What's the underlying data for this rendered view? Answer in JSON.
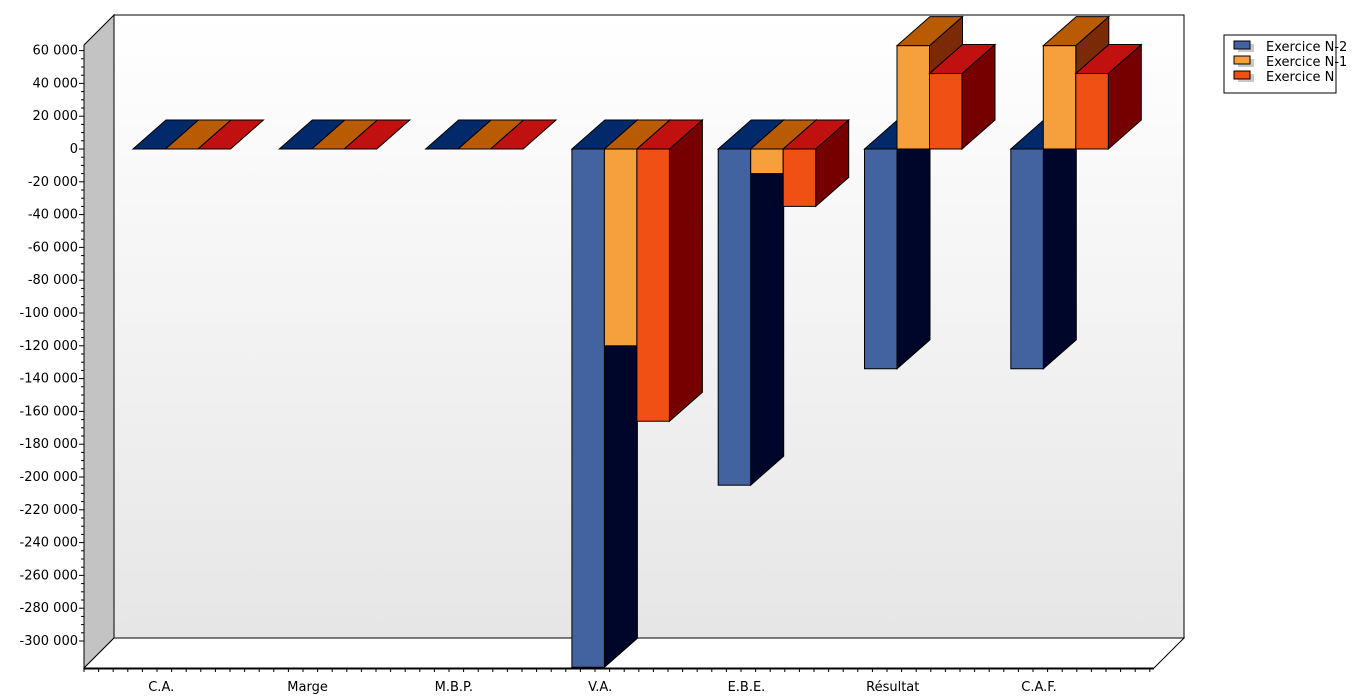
{
  "chart_data": {
    "type": "bar",
    "style": "3d-clustered",
    "categories": [
      "C.A.",
      "Marge",
      "M.B.P.",
      "V.A.",
      "E.B.E.",
      "Résultat",
      "C.A.F."
    ],
    "series": [
      {
        "name": "Exercice N-2",
        "values": [
          0,
          0,
          0,
          -316000,
          -205000,
          -134000,
          -134000
        ],
        "front": "#4263a0",
        "top": "#022a6a",
        "side": "#00052a"
      },
      {
        "name": "Exercice N-1",
        "values": [
          0,
          0,
          0,
          -120000,
          -15000,
          63000,
          63000
        ],
        "front": "#f6a03d",
        "top": "#b85b03",
        "side": "#7a2a06"
      },
      {
        "name": "Exercice N",
        "values": [
          0,
          0,
          0,
          -166000,
          -35000,
          46000,
          46000
        ],
        "front": "#f15014",
        "top": "#c01010",
        "side": "#760000"
      }
    ],
    "yticks": [
      "60 000",
      "40 000",
      "20 000",
      "0",
      "-20 000",
      "-40 000",
      "-60 000",
      "-80 000",
      "-100 000",
      "-120 000",
      "-140 000",
      "-160 000",
      "-180 000",
      "-200 000",
      "-220 000",
      "-240 000",
      "-260 000",
      "-280 000",
      "-300 000"
    ],
    "ylim": [
      -300000,
      60000
    ],
    "xlabel": "",
    "ylabel": "",
    "legend_position": "top-right",
    "grid": false
  }
}
